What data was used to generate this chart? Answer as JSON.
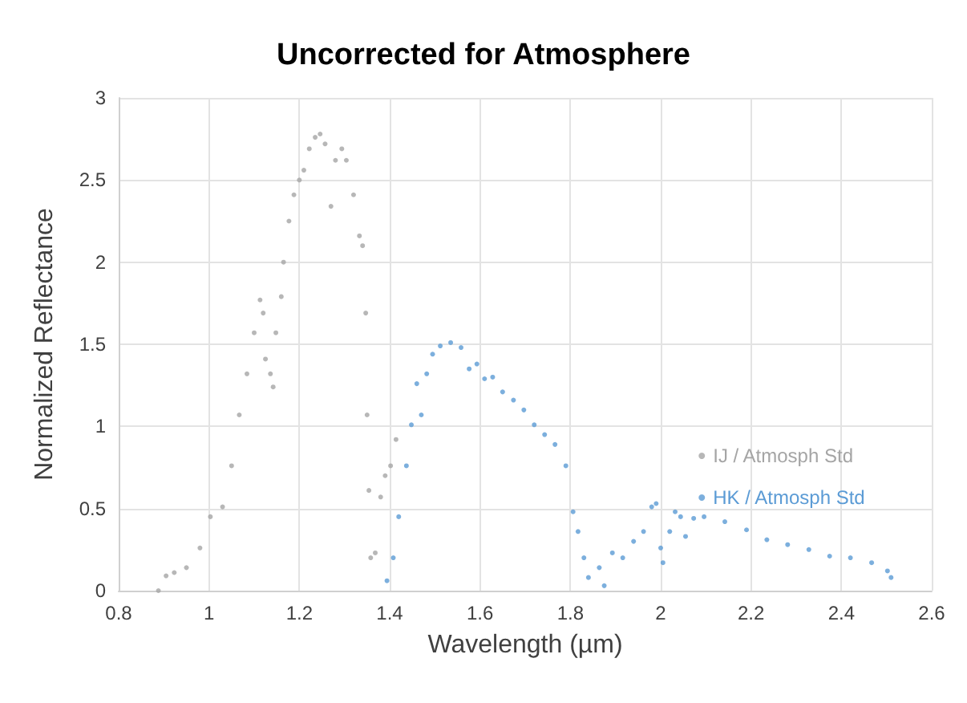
{
  "chart_data": {
    "type": "scatter",
    "title": "Uncorrected for Atmosphere",
    "xlabel": "Wavelength (µm)",
    "ylabel": "Normalized Reflectance",
    "xlim": [
      0.8,
      2.6
    ],
    "xticks": [
      0.8,
      1,
      1.2,
      1.4,
      1.6,
      1.8,
      2,
      2.2,
      2.4,
      2.6
    ],
    "ylim": [
      0,
      3
    ],
    "yticks": [
      0,
      0.5,
      1,
      1.5,
      2,
      2.5,
      3
    ],
    "grid": true,
    "legend": "right",
    "marker": "circle",
    "series": [
      {
        "name": "IJ / Atmosph Std",
        "color": "#a5a5a5",
        "x": [
          0.888,
          0.905,
          0.923,
          0.95,
          0.98,
          1.003,
          1.03,
          1.05,
          1.067,
          1.084,
          1.1,
          1.113,
          1.12,
          1.125,
          1.136,
          1.142,
          1.148,
          1.16,
          1.165,
          1.177,
          1.188,
          1.2,
          1.21,
          1.222,
          1.235,
          1.246,
          1.257,
          1.27,
          1.28,
          1.294,
          1.304,
          1.32,
          1.333,
          1.34,
          1.347,
          1.35,
          1.354,
          1.358,
          1.368,
          1.38,
          1.39,
          1.402,
          1.414
        ],
        "values": [
          0,
          0.09,
          0.11,
          0.14,
          0.26,
          0.45,
          0.51,
          0.76,
          1.07,
          1.32,
          1.57,
          1.77,
          1.69,
          1.41,
          1.32,
          1.24,
          1.57,
          1.79,
          2.0,
          2.25,
          2.41,
          2.5,
          2.56,
          2.69,
          2.76,
          2.78,
          2.72,
          2.34,
          2.62,
          2.69,
          2.62,
          2.41,
          2.16,
          2.1,
          1.69,
          1.07,
          0.61,
          0.2,
          0.23,
          0.57,
          0.7,
          0.76,
          0.92
        ]
      },
      {
        "name": "HK / Atmosph Std",
        "color": "#5b9bd5",
        "x": [
          1.394,
          1.408,
          1.42,
          1.437,
          1.448,
          1.46,
          1.47,
          1.482,
          1.495,
          1.512,
          1.535,
          1.558,
          1.576,
          1.593,
          1.61,
          1.628,
          1.65,
          1.674,
          1.697,
          1.72,
          1.743,
          1.766,
          1.79,
          1.806,
          1.817,
          1.83,
          1.84,
          1.864,
          1.875,
          1.893,
          1.916,
          1.94,
          1.962,
          1.98,
          1.99,
          2.0,
          2.005,
          2.02,
          2.032,
          2.044,
          2.055,
          2.073,
          2.096,
          2.142,
          2.19,
          2.235,
          2.281,
          2.328,
          2.374,
          2.42,
          2.467,
          2.502,
          2.51
        ],
        "values": [
          0.06,
          0.2,
          0.45,
          0.76,
          1.01,
          1.26,
          1.07,
          1.32,
          1.44,
          1.49,
          1.51,
          1.48,
          1.35,
          1.38,
          1.29,
          1.3,
          1.21,
          1.16,
          1.1,
          1.01,
          0.95,
          0.89,
          0.76,
          0.48,
          0.36,
          0.2,
          0.08,
          0.14,
          0.03,
          0.23,
          0.2,
          0.3,
          0.36,
          0.51,
          0.53,
          0.26,
          0.17,
          0.36,
          0.48,
          0.45,
          0.33,
          0.44,
          0.45,
          0.42,
          0.37,
          0.31,
          0.28,
          0.25,
          0.21,
          0.2,
          0.17,
          0.12,
          0.08
        ]
      }
    ]
  }
}
